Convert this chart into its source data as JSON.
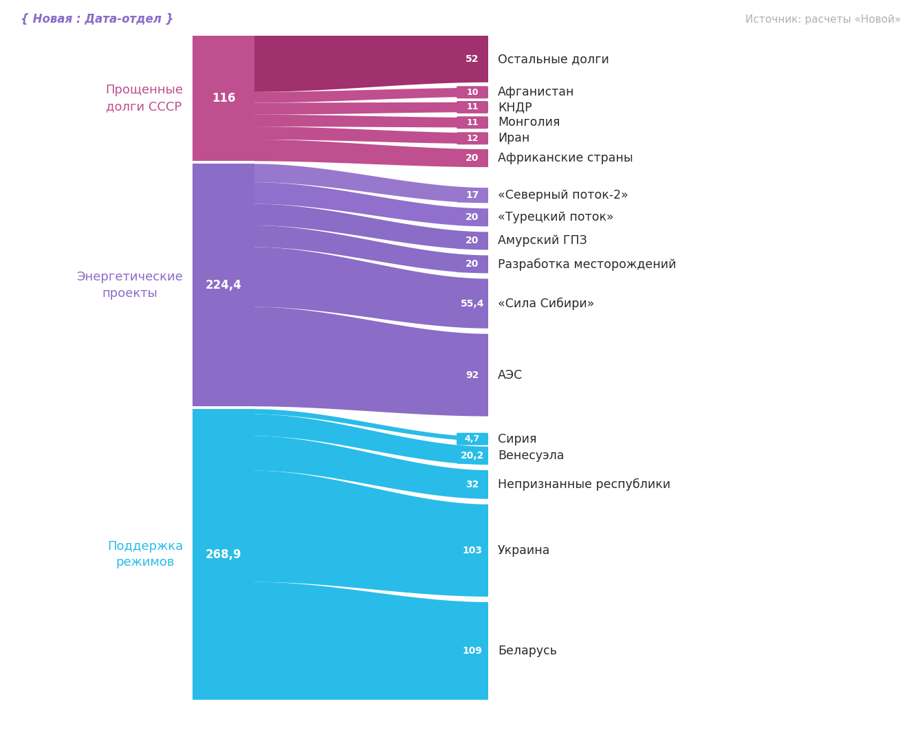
{
  "sources": [
    {
      "name": "Поддержка\nрежимов",
      "value": 268.9,
      "color": "#29bce8"
    },
    {
      "name": "Энергетические\nпроекты",
      "value": 224.4,
      "color": "#8b6cc7"
    },
    {
      "name": "Прощенные\nдолги СССР",
      "value": 116,
      "color": "#bf4f8e"
    }
  ],
  "flows": [
    {
      "label": "Беларусь",
      "value": 109,
      "color": "#29bce8",
      "source": 0
    },
    {
      "label": "Украина",
      "value": 103,
      "color": "#29bce8",
      "source": 0
    },
    {
      "label": "Непризнанные республики",
      "value": 32,
      "color": "#29bce8",
      "source": 0
    },
    {
      "label": "Венесуэла",
      "value": 20.2,
      "color": "#29bce8",
      "source": 0
    },
    {
      "label": "Сирия",
      "value": 4.7,
      "color": "#29bce8",
      "source": 0
    },
    {
      "label": "АЭС",
      "value": 92,
      "color": "#8b6cc7",
      "source": 1
    },
    {
      "label": "«Сила Сибири»",
      "value": 55.4,
      "color": "#8b6cc7",
      "source": 1
    },
    {
      "label": "Разработка месторождений",
      "value": 20,
      "color": "#8b6cc7",
      "source": 1
    },
    {
      "label": "Амурский ГПЗ",
      "value": 20,
      "color": "#8b6cc7",
      "source": 1
    },
    {
      "label": "«Турецкий поток»",
      "value": 20,
      "color": "#9070cc",
      "source": 1
    },
    {
      "label": "«Северный поток-2»",
      "value": 17,
      "color": "#9878cc",
      "source": 1
    },
    {
      "label": "Африканские страны",
      "value": 20,
      "color": "#bf4f8e",
      "source": 2
    },
    {
      "label": "Иран",
      "value": 12,
      "color": "#bf4f8e",
      "source": 2
    },
    {
      "label": "Монголия",
      "value": 11,
      "color": "#bf4f8e",
      "source": 2
    },
    {
      "label": "КНДР",
      "value": 11,
      "color": "#bf4f8e",
      "source": 2
    },
    {
      "label": "Афганистан",
      "value": 10,
      "color": "#bf4f8e",
      "source": 2
    },
    {
      "label": "Остальные долги",
      "value": 52,
      "color": "#a0306e",
      "source": 2
    }
  ],
  "source_label_colors": [
    "#29bce8",
    "#8b6cc7",
    "#bf4f8e"
  ],
  "footer_left": "{ Новая : Дата-отдел }",
  "footer_right": "Источник: расчеты «Новой»",
  "bg_color": "#ffffff"
}
